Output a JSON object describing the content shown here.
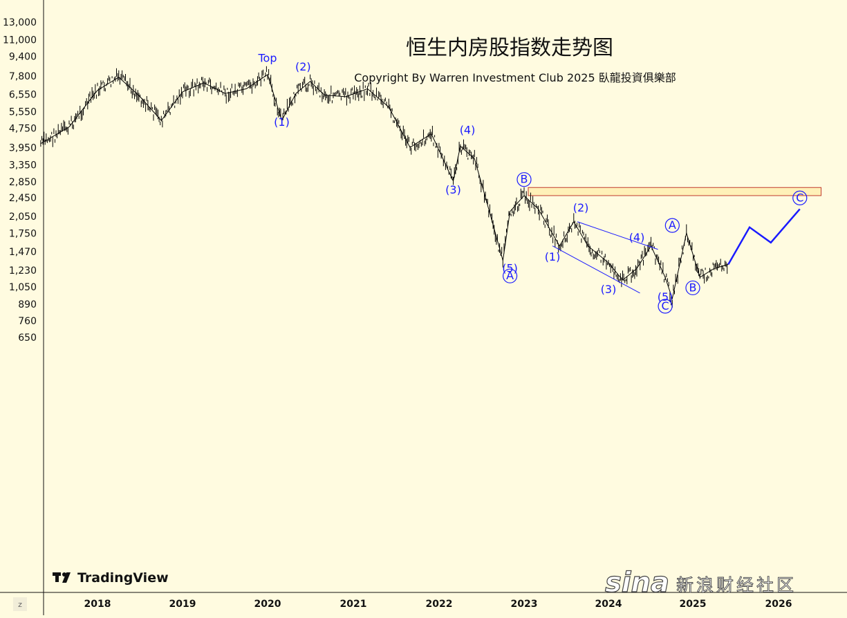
{
  "chart_data": {
    "type": "line",
    "title": "恒生内房股指数走势图",
    "subtitle": "Copyright By Warren Investment Club 2025 臥龍投資俱樂部",
    "y_scale": "log",
    "y_ticks": [
      13000,
      11000,
      9400,
      7800,
      6550,
      5550,
      4750,
      3950,
      3350,
      2850,
      2450,
      2050,
      1750,
      1470,
      1230,
      1050,
      890,
      760,
      650
    ],
    "y_tick_labels": [
      "13,000",
      "11,000",
      "9,400",
      "7,800",
      "6,550",
      "5,550",
      "4,750",
      "3,950",
      "3,350",
      "2,850",
      "2,450",
      "2,050",
      "1,750",
      "1,470",
      "1,230",
      "1,050",
      "890",
      "760",
      "650"
    ],
    "x_ticks": [
      "2018",
      "2019",
      "2020",
      "2021",
      "2022",
      "2023",
      "2024",
      "2025",
      "2026"
    ],
    "series": [
      {
        "x": [
          "2017-05",
          "2017-09",
          "2018-01",
          "2018-04",
          "2018-07",
          "2018-10",
          "2019-01",
          "2019-04",
          "2019-07",
          "2019-10",
          "2020-01",
          "2020-03",
          "2020-05",
          "2020-07",
          "2020-09",
          "2020-12",
          "2021-03",
          "2021-06",
          "2021-09",
          "2021-12",
          "2022-03",
          "2022-04",
          "2022-06",
          "2022-08",
          "2022-10",
          "2022-11",
          "2023-01",
          "2023-03",
          "2023-06",
          "2023-08",
          "2023-10",
          "2024-01",
          "2024-03",
          "2024-05",
          "2024-07",
          "2024-09",
          "2024-10",
          "2024-12",
          "2025-02",
          "2025-04",
          "2025-06"
        ],
        "y": [
          4100,
          4800,
          6800,
          7700,
          6400,
          5100,
          6700,
          7300,
          6600,
          6900,
          7900,
          5100,
          6600,
          7400,
          6500,
          6400,
          6900,
          5800,
          3950,
          4500,
          2870,
          4000,
          3550,
          2200,
          1350,
          2150,
          2500,
          2200,
          1550,
          1950,
          1550,
          1320,
          1120,
          1250,
          1550,
          1150,
          940,
          1750,
          1150,
          1250,
          1300
        ]
      }
    ],
    "projection": {
      "x": [
        "2025-06",
        "2025-09",
        "2025-12",
        "2026-04"
      ],
      "y": [
        1300,
        1850,
        1600,
        2200
      ]
    },
    "target_zone": {
      "x": [
        "2023-01",
        "2026-07"
      ],
      "y": [
        2500,
        2700
      ]
    },
    "annotations": [
      {
        "text": "Top",
        "x": "2020-01",
        "y": 8900
      },
      {
        "text": "(2)",
        "x": "2020-06",
        "y": 8200
      },
      {
        "text": "(1)",
        "x": "2020-03",
        "y": 4850
      },
      {
        "text": "(4)",
        "x": "2022-05",
        "y": 4500
      },
      {
        "text": "(3)",
        "x": "2022-03",
        "y": 2550
      },
      {
        "text": "(5)",
        "x": "2022-11",
        "y": 1210
      },
      {
        "text": "A",
        "x": "2022-11",
        "y": 1120,
        "circled": true
      },
      {
        "text": "B",
        "x": "2023-01",
        "y": 2800,
        "circled": true
      },
      {
        "text": "(2)",
        "x": "2023-09",
        "y": 2150
      },
      {
        "text": "(1)",
        "x": "2023-05",
        "y": 1350
      },
      {
        "text": "(3)",
        "x": "2024-01",
        "y": 990
      },
      {
        "text": "(4)",
        "x": "2024-05",
        "y": 1620
      },
      {
        "text": "A",
        "x": "2024-10",
        "y": 1810,
        "circled": true
      },
      {
        "text": "(5)",
        "x": "2024-09",
        "y": 920
      },
      {
        "text": "C",
        "x": "2024-09",
        "y": 840,
        "circled": true
      },
      {
        "text": "B",
        "x": "2025-01",
        "y": 1000,
        "circled": true
      },
      {
        "text": "C",
        "x": "2026-04",
        "y": 2350,
        "circled": true
      }
    ],
    "xlabel": "",
    "ylabel": "",
    "grid": false
  },
  "branding": {
    "tv_logo_text": "TradingView",
    "sina_logo": "sina",
    "sina_text": "新浪财经社区",
    "corner_label": "z"
  },
  "colors": {
    "background": "#fffbe0",
    "price": "#000000",
    "annotation": "#1a1aff",
    "zone_fill": "#fff1b8",
    "zone_stroke": "#c0392b"
  }
}
